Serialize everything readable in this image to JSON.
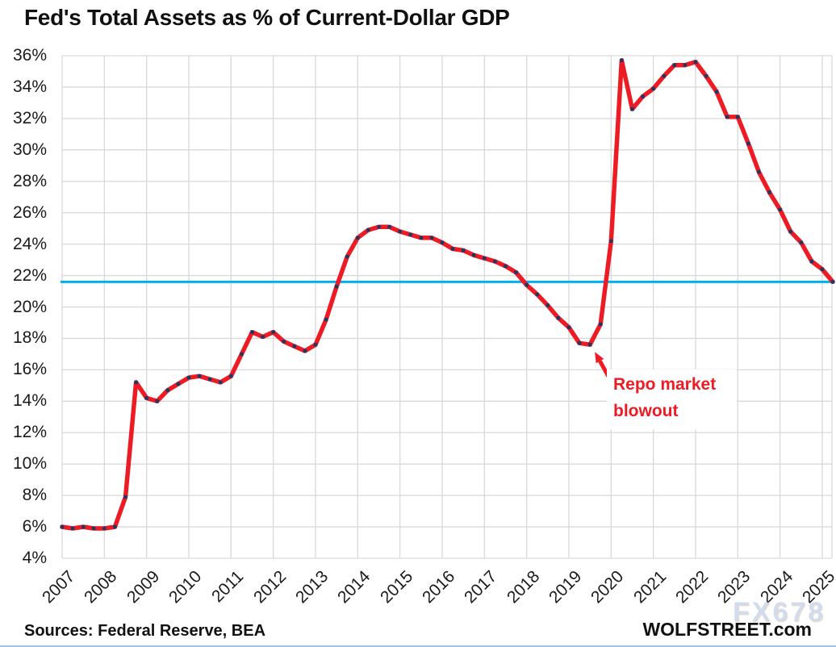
{
  "page": {
    "title": "Fed's Total Assets as % of Current-Dollar GDP"
  },
  "annotation": {
    "line1": "Repo market",
    "line2": "blowout"
  },
  "watermark": "FX678",
  "footer": {
    "sources": "Sources: Federal Reserve, BEA",
    "site": "WOLFSTREET.com"
  },
  "colors": {
    "series": "#ed1c24",
    "marker": "#1f3864",
    "reference_line": "#00b0f0",
    "grid": "#d9d9d9",
    "annotation_text": "#ed1c24",
    "watermark_text": "#c9d8ec",
    "axis_text": "#1a1a1a"
  },
  "chart_data": {
    "type": "line",
    "title": "Fed's Total Assets as % of Current-Dollar GDP",
    "xlabel": "",
    "ylabel": "",
    "grid": true,
    "legend": "none",
    "ylim": [
      4,
      36
    ],
    "xlim": [
      2007,
      2025.25
    ],
    "y_ticks": [
      36,
      34,
      32,
      30,
      28,
      26,
      24,
      22,
      20,
      18,
      16,
      14,
      12,
      10,
      8,
      6,
      4
    ],
    "y_tick_suffix": "%",
    "x_ticks": [
      2007,
      2008,
      2009,
      2010,
      2011,
      2012,
      2013,
      2014,
      2015,
      2016,
      2017,
      2018,
      2019,
      2020,
      2021,
      2022,
      2023,
      2024,
      2025
    ],
    "reference_line": {
      "value": 21.6
    },
    "annotation": {
      "text": "Repo market blowout",
      "points_at": [
        2019.5,
        17.6
      ]
    },
    "series": [
      {
        "name": "Fed total assets as % of current-dollar GDP (quarterly)",
        "points": [
          [
            2007.0,
            6.0
          ],
          [
            2007.25,
            5.9
          ],
          [
            2007.5,
            6.0
          ],
          [
            2007.75,
            5.9
          ],
          [
            2008.0,
            5.9
          ],
          [
            2008.25,
            6.0
          ],
          [
            2008.5,
            7.9
          ],
          [
            2008.75,
            15.2
          ],
          [
            2009.0,
            14.2
          ],
          [
            2009.25,
            14.0
          ],
          [
            2009.5,
            14.7
          ],
          [
            2009.75,
            15.1
          ],
          [
            2010.0,
            15.5
          ],
          [
            2010.25,
            15.6
          ],
          [
            2010.5,
            15.4
          ],
          [
            2010.75,
            15.2
          ],
          [
            2011.0,
            15.6
          ],
          [
            2011.25,
            17.0
          ],
          [
            2011.5,
            18.4
          ],
          [
            2011.75,
            18.1
          ],
          [
            2012.0,
            18.4
          ],
          [
            2012.25,
            17.8
          ],
          [
            2012.5,
            17.5
          ],
          [
            2012.75,
            17.2
          ],
          [
            2013.0,
            17.6
          ],
          [
            2013.25,
            19.2
          ],
          [
            2013.5,
            21.3
          ],
          [
            2013.75,
            23.2
          ],
          [
            2014.0,
            24.4
          ],
          [
            2014.25,
            24.9
          ],
          [
            2014.5,
            25.1
          ],
          [
            2014.75,
            25.1
          ],
          [
            2015.0,
            24.8
          ],
          [
            2015.25,
            24.6
          ],
          [
            2015.5,
            24.4
          ],
          [
            2015.75,
            24.4
          ],
          [
            2016.0,
            24.1
          ],
          [
            2016.25,
            23.7
          ],
          [
            2016.5,
            23.6
          ],
          [
            2016.75,
            23.3
          ],
          [
            2017.0,
            23.1
          ],
          [
            2017.25,
            22.9
          ],
          [
            2017.5,
            22.6
          ],
          [
            2017.75,
            22.2
          ],
          [
            2018.0,
            21.4
          ],
          [
            2018.25,
            20.8
          ],
          [
            2018.5,
            20.1
          ],
          [
            2018.75,
            19.3
          ],
          [
            2019.0,
            18.7
          ],
          [
            2019.25,
            17.7
          ],
          [
            2019.5,
            17.6
          ],
          [
            2019.75,
            18.9
          ],
          [
            2020.0,
            24.2
          ],
          [
            2020.25,
            35.7
          ],
          [
            2020.5,
            32.6
          ],
          [
            2020.75,
            33.4
          ],
          [
            2021.0,
            33.9
          ],
          [
            2021.25,
            34.7
          ],
          [
            2021.5,
            35.4
          ],
          [
            2021.75,
            35.4
          ],
          [
            2022.0,
            35.6
          ],
          [
            2022.25,
            34.7
          ],
          [
            2022.5,
            33.7
          ],
          [
            2022.75,
            32.1
          ],
          [
            2023.0,
            32.1
          ],
          [
            2023.25,
            30.4
          ],
          [
            2023.5,
            28.6
          ],
          [
            2023.75,
            27.3
          ],
          [
            2024.0,
            26.2
          ],
          [
            2024.25,
            24.8
          ],
          [
            2024.5,
            24.1
          ],
          [
            2024.75,
            22.9
          ],
          [
            2025.0,
            22.4
          ],
          [
            2025.25,
            21.6
          ]
        ]
      }
    ]
  }
}
